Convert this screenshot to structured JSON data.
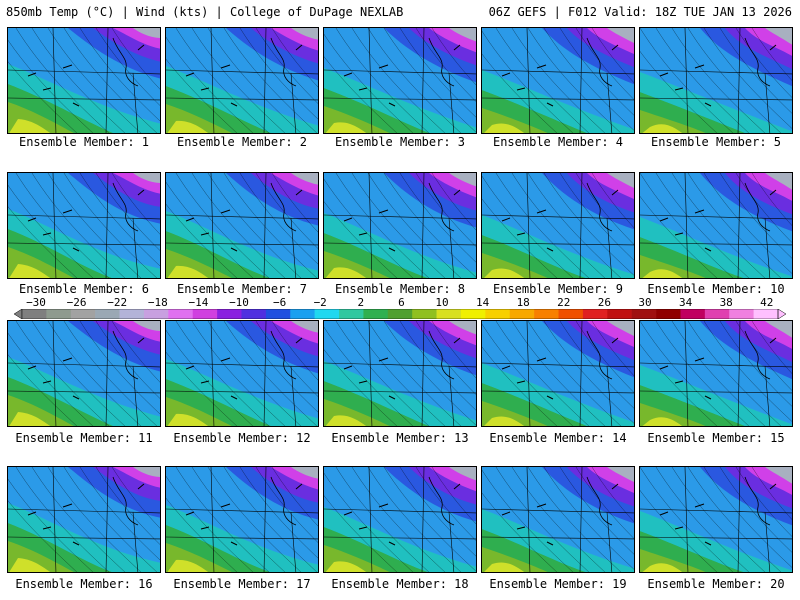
{
  "header": {
    "left": "850mb Temp (°C) | Wind (kts) | College of DuPage NEXLAB",
    "right": "06Z GEFS | F012 Valid: 18Z TUE JAN 13 2026"
  },
  "member_label_prefix": "Ensemble Member:",
  "members": [
    1,
    2,
    3,
    4,
    5,
    6,
    7,
    8,
    9,
    10,
    11,
    12,
    13,
    14,
    15,
    16,
    17,
    18,
    19,
    20
  ],
  "colorbar": {
    "tick_labels": [
      "−30",
      "−26",
      "−22",
      "−18",
      "−14",
      "−10",
      "−6",
      "−2",
      "2",
      "6",
      "10",
      "14",
      "18",
      "22",
      "26",
      "30",
      "34",
      "38",
      "42"
    ],
    "colors": [
      "#7f7f7f",
      "#8e9a8e",
      "#a2a2a2",
      "#9aa8b4",
      "#b3b3d8",
      "#c8a0e0",
      "#e070f0",
      "#d040e0",
      "#8a20e0",
      "#5030e0",
      "#2050e0",
      "#1aa0f0",
      "#20d8f0",
      "#30c8a0",
      "#30b050",
      "#50a030",
      "#90c020",
      "#d8e020",
      "#f0f000",
      "#f8d000",
      "#f8a800",
      "#f88000",
      "#f05000",
      "#e02020",
      "#c01010",
      "#a01010",
      "#900000",
      "#c00060",
      "#e040b0",
      "#f080e0",
      "#ffc0ff"
    ]
  }
}
